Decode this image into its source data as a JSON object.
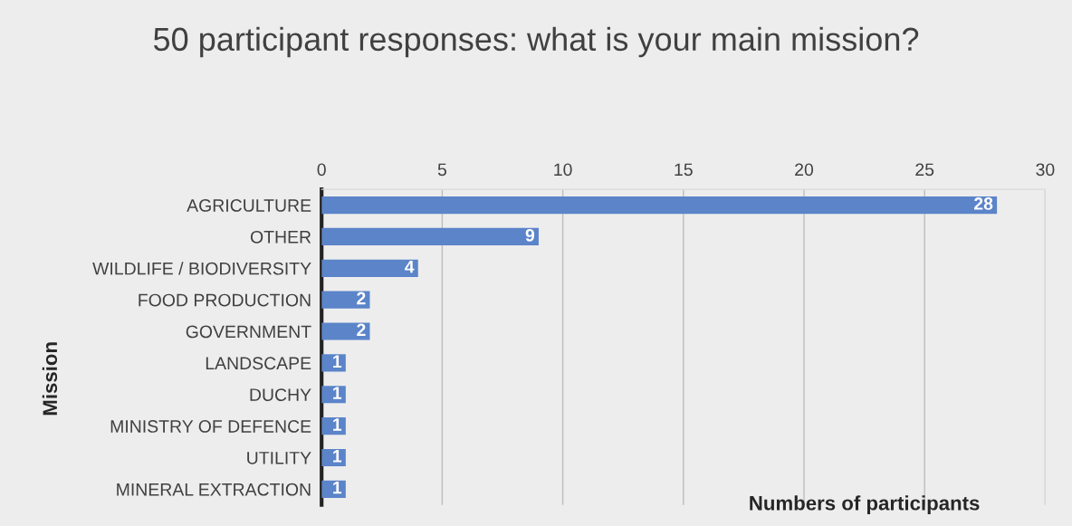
{
  "chart_data": {
    "type": "bar",
    "orientation": "horizontal",
    "title": "50 participant responses: what is your main mission?",
    "xlabel": "Numbers of participants",
    "ylabel": "Mission",
    "categories": [
      "AGRICULTURE",
      "OTHER",
      "WILDLIFE / BIODIVERSITY",
      "FOOD PRODUCTION",
      "GOVERNMENT",
      "LANDSCAPE",
      "DUCHY",
      "MINISTRY OF DEFENCE",
      "UTILITY",
      "MINERAL EXTRACTION"
    ],
    "values": [
      28,
      9,
      4,
      2,
      2,
      1,
      1,
      1,
      1,
      1
    ],
    "color": "#5b84c9",
    "xlim": [
      0,
      30
    ],
    "xticks": [
      0,
      5,
      10,
      15,
      20,
      25,
      30
    ],
    "grid": "x",
    "data_labels": true
  }
}
